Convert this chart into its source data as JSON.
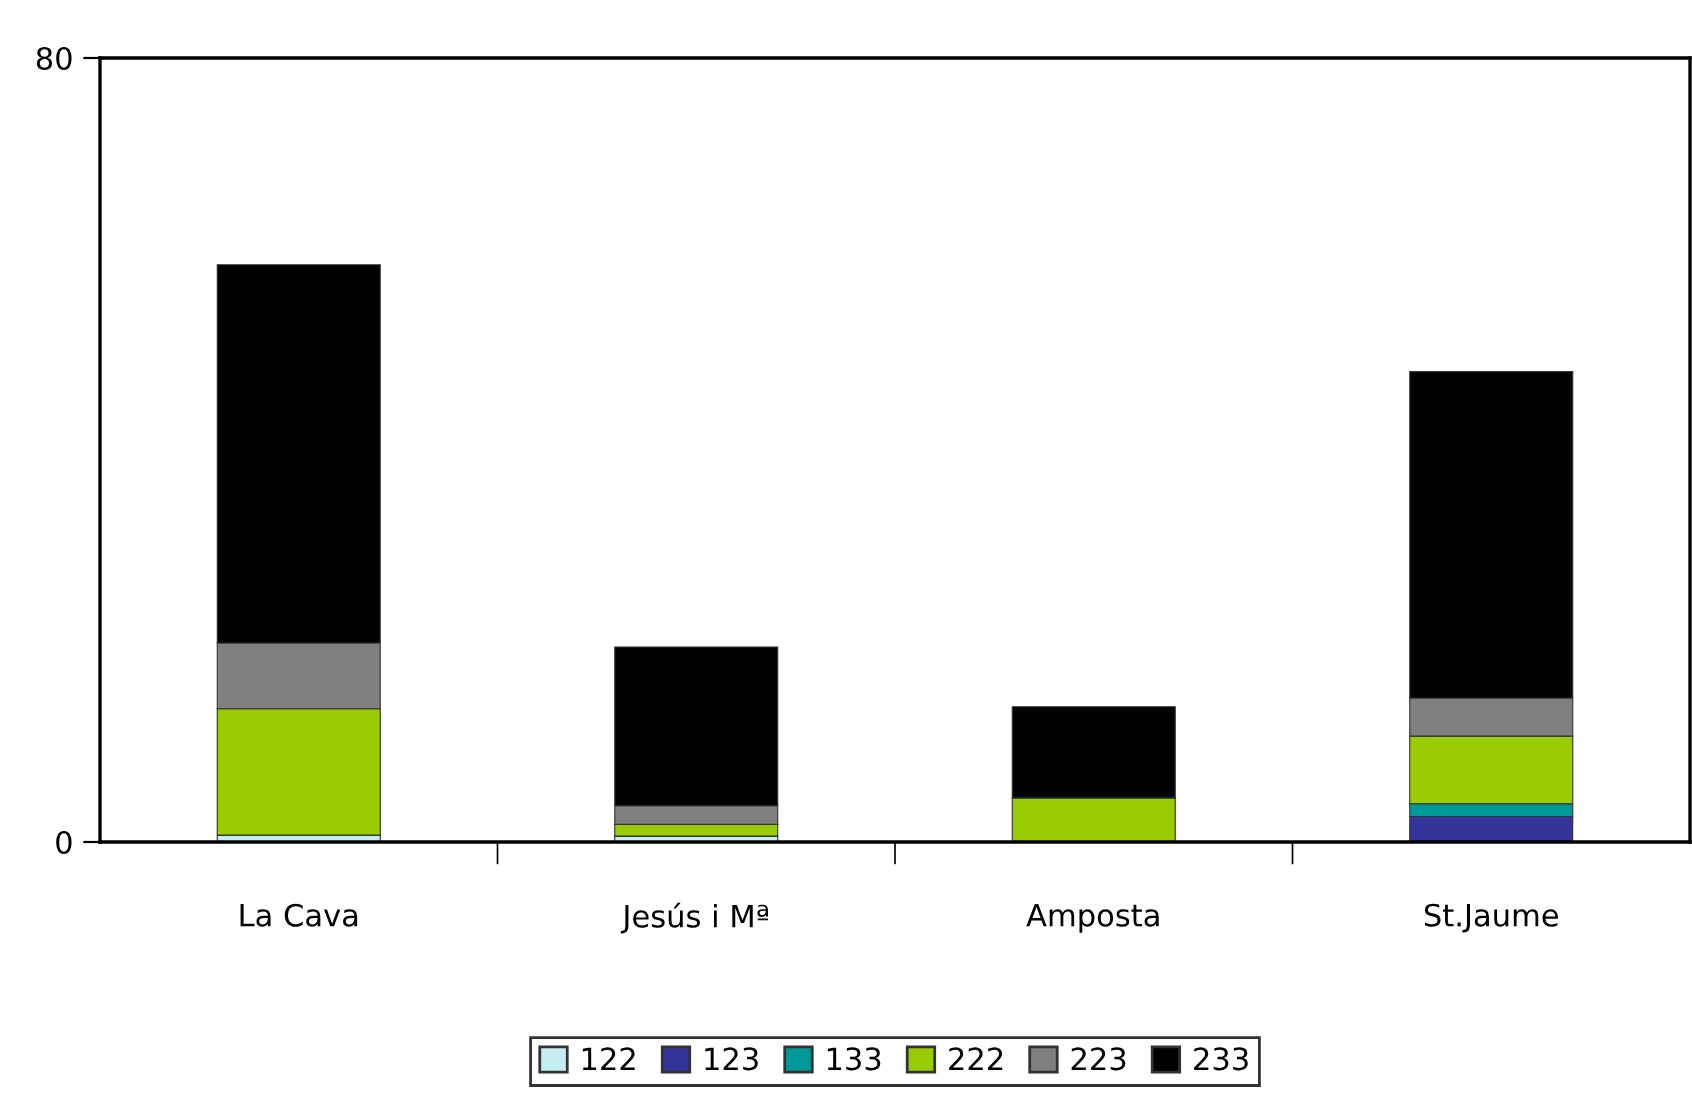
{
  "chart_data": {
    "type": "bar",
    "stacked": true,
    "categories": [
      "La Cava",
      "Jesús i Mª",
      "Amposta",
      "St.Jaume"
    ],
    "series": [
      {
        "name": "122",
        "color": "#c6eef2",
        "values": [
          0.7,
          0.6,
          0,
          0
        ]
      },
      {
        "name": "123",
        "color": "#333399",
        "values": [
          0,
          0,
          0,
          2.6
        ]
      },
      {
        "name": "133",
        "color": "#009999",
        "values": [
          0,
          0,
          0,
          1.3
        ]
      },
      {
        "name": "222",
        "color": "#99cc00",
        "values": [
          12.9,
          1.2,
          4.5,
          6.9
        ]
      },
      {
        "name": "223",
        "color": "#808080",
        "values": [
          6.7,
          1.9,
          0,
          3.9
        ]
      },
      {
        "name": "233",
        "color": "#000000",
        "values": [
          38.6,
          16.2,
          9.3,
          33.3
        ]
      }
    ],
    "ylim": [
      0,
      80
    ],
    "yticks": [
      0,
      80
    ],
    "grid": false,
    "legend": "bottom"
  }
}
